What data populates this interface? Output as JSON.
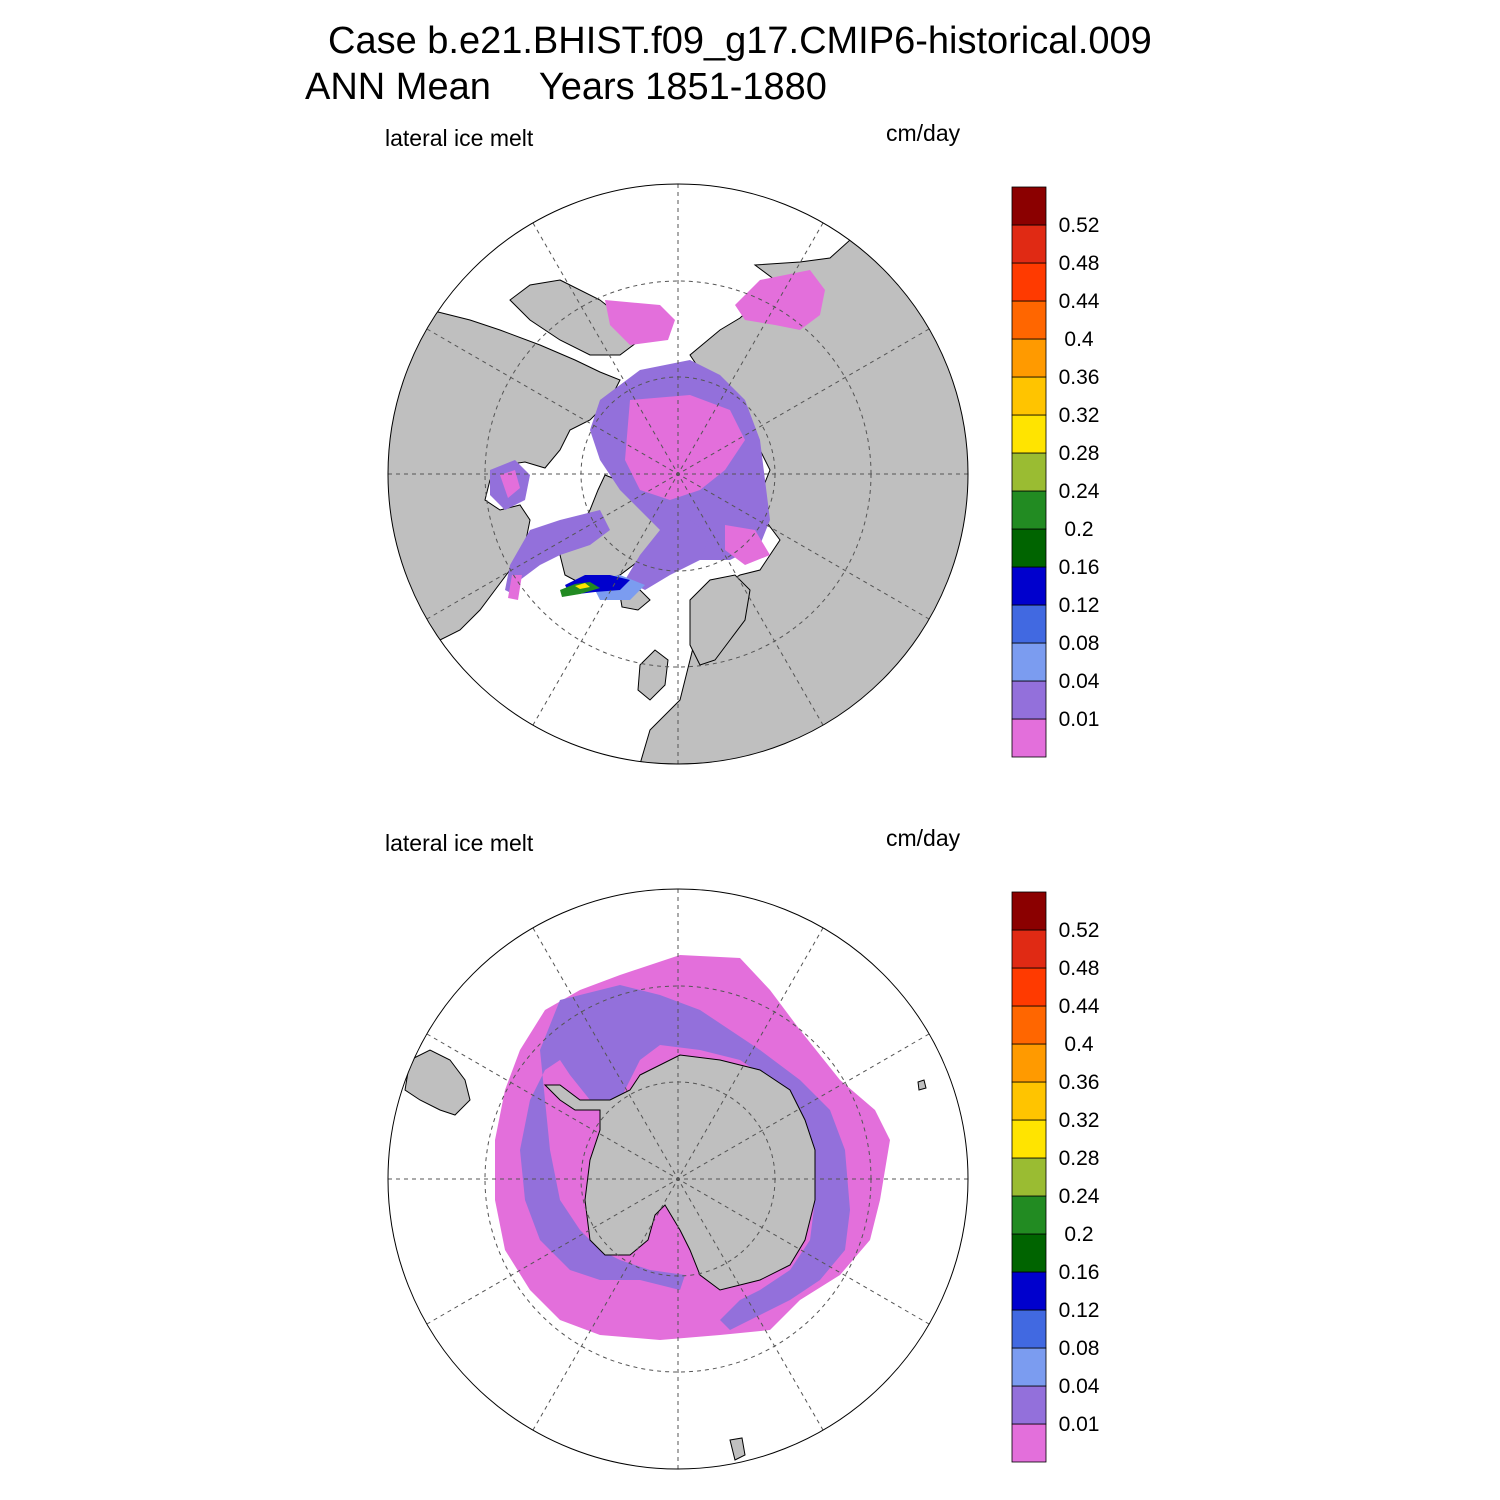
{
  "title": {
    "line1": "Case b.e21.BHIST.f09_g17.CMIP6-historical.009",
    "season": "ANN Mean",
    "years": "Years 1851-1880"
  },
  "panels": [
    {
      "hemisphere": "north",
      "variable_label": "lateral ice melt",
      "units_label": "cm/day"
    },
    {
      "hemisphere": "south",
      "variable_label": "lateral ice melt",
      "units_label": "cm/day"
    }
  ],
  "colorbar": {
    "levels": [
      "0.01",
      "0.04",
      "0.08",
      "0.12",
      "0.16",
      "0.2",
      "0.24",
      "0.28",
      "0.32",
      "0.36",
      "0.4",
      "0.44",
      "0.48",
      "0.52"
    ],
    "colors": [
      "#e36fdb",
      "#9370db",
      "#7b9cf0",
      "#4169e1",
      "#0000cd",
      "#006400",
      "#228b22",
      "#9abc32",
      "#ffe400",
      "#ffc400",
      "#ff9a00",
      "#ff6600",
      "#ff3a00",
      "#e02a14",
      "#8b0000"
    ]
  },
  "map_colors": {
    "land": "#bfbfbf",
    "ocean": "#ffffff",
    "grid": "#555555"
  }
}
